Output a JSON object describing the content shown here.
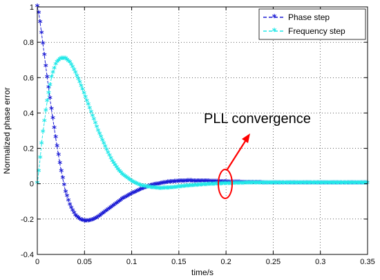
{
  "chart_data": {
    "type": "line",
    "title": "",
    "xlabel": "time/s",
    "ylabel": "Normalized phase error",
    "xlim": [
      0,
      0.35
    ],
    "ylim": [
      -0.4,
      1
    ],
    "grid": true,
    "legend_position": "top-right",
    "xticks": [
      0,
      0.05,
      0.1,
      0.15,
      0.2,
      0.25,
      0.3,
      0.35
    ],
    "xtick_labels": [
      "0",
      "0.05",
      "0.1",
      "0.15",
      "0.2",
      "0.25",
      "0.3",
      "0.35"
    ],
    "yticks": [
      -0.4,
      -0.2,
      0,
      0.2,
      0.4,
      0.6,
      0.8,
      1
    ],
    "ytick_labels": [
      "-0.4",
      "-0.2",
      "0",
      "0.2",
      "0.4",
      "0.6",
      "0.8",
      "1"
    ],
    "series": [
      {
        "name": "Phase step",
        "color": "#1a1ad4",
        "marker": "*",
        "x": [
          0,
          0.002,
          0.005,
          0.01,
          0.015,
          0.02,
          0.025,
          0.03,
          0.035,
          0.04,
          0.045,
          0.05,
          0.055,
          0.058,
          0.06,
          0.065,
          0.07,
          0.08,
          0.09,
          0.1,
          0.11,
          0.12,
          0.13,
          0.14,
          0.15,
          0.16,
          0.17,
          0.18,
          0.19,
          0.2,
          0.22,
          0.25,
          0.3,
          0.35
        ],
        "y": [
          1.0,
          0.95,
          0.83,
          0.62,
          0.42,
          0.24,
          0.08,
          -0.05,
          -0.13,
          -0.18,
          -0.205,
          -0.215,
          -0.213,
          -0.21,
          -0.205,
          -0.19,
          -0.17,
          -0.13,
          -0.09,
          -0.06,
          -0.035,
          -0.015,
          -0.003,
          0.006,
          0.01,
          0.012,
          0.011,
          0.01,
          0.008,
          0.006,
          0.003,
          0.001,
          0.0,
          0.0
        ]
      },
      {
        "name": "Frequency step",
        "color": "#22e8e8",
        "marker": "*",
        "x": [
          0,
          0.002,
          0.005,
          0.01,
          0.015,
          0.02,
          0.025,
          0.03,
          0.035,
          0.04,
          0.045,
          0.05,
          0.055,
          0.06,
          0.065,
          0.07,
          0.075,
          0.08,
          0.085,
          0.09,
          0.1,
          0.11,
          0.12,
          0.13,
          0.14,
          0.15,
          0.16,
          0.18,
          0.2,
          0.22,
          0.25,
          0.3,
          0.35
        ],
        "y": [
          0.0,
          0.09,
          0.25,
          0.45,
          0.6,
          0.68,
          0.705,
          0.705,
          0.68,
          0.63,
          0.57,
          0.5,
          0.43,
          0.36,
          0.29,
          0.23,
          0.17,
          0.12,
          0.08,
          0.05,
          0.01,
          -0.015,
          -0.025,
          -0.03,
          -0.028,
          -0.022,
          -0.016,
          -0.008,
          -0.003,
          0.0,
          0.0,
          0.0,
          0.0
        ]
      }
    ],
    "annotations": [
      {
        "text": "PLL convergence",
        "target": [
          0.2,
          0.0
        ],
        "color": "#ff0000"
      }
    ]
  }
}
